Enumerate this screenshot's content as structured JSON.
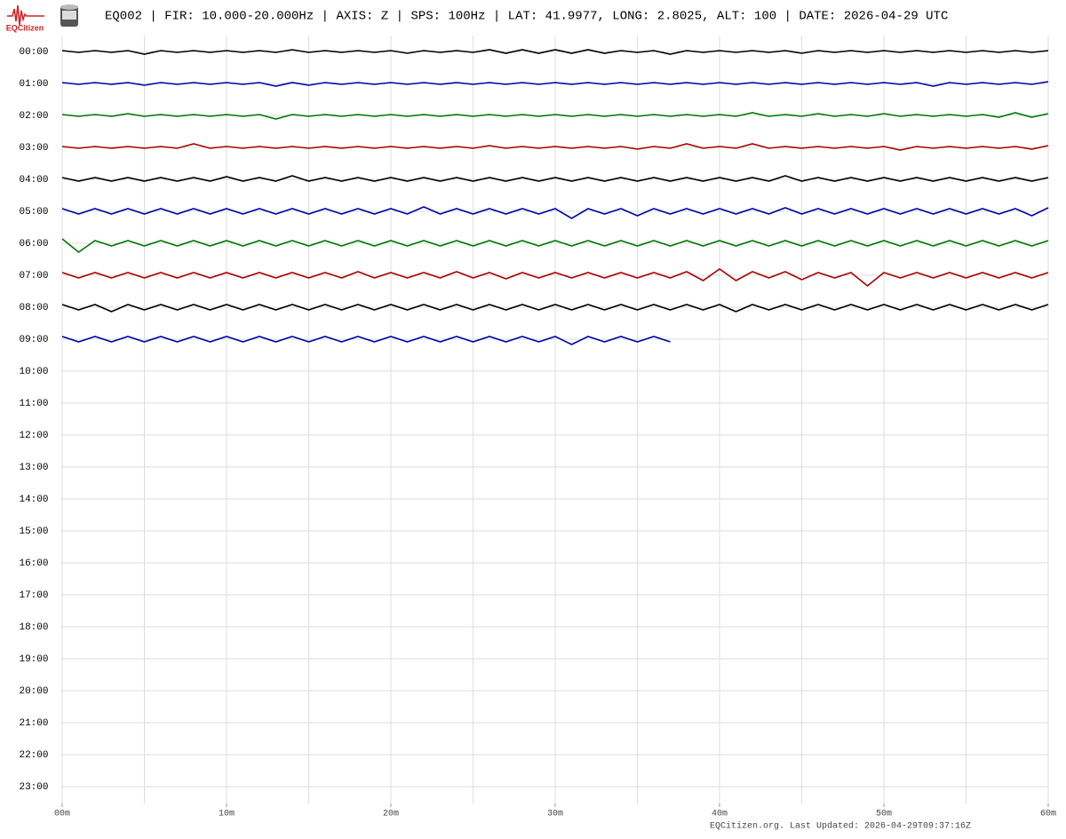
{
  "logo": "EQCitizen",
  "footer": "EQCitizen.org. Last Updated: 2026-04-29T09:37:16Z",
  "chart_data": {
    "type": "helicorder",
    "title": "EQ002 | FIR: 10.000-20.000Hz | AXIS: Z | SPS: 100Hz | LAT: 41.9977, LONG: 2.8025, ALT: 100 | DATE: 2026-04-29 UTC",
    "categories": [
      "00:00",
      "01:00",
      "02:00",
      "03:00",
      "04:00",
      "05:00",
      "06:00",
      "07:00",
      "08:00",
      "09:00",
      "10:00",
      "11:00",
      "12:00",
      "13:00",
      "14:00",
      "15:00",
      "16:00",
      "17:00",
      "18:00",
      "19:00",
      "20:00",
      "21:00",
      "22:00",
      "23:00"
    ],
    "xlim": [
      0,
      60
    ],
    "xticks": [
      {
        "value": 0,
        "label": "00m"
      },
      {
        "value": 10,
        "label": "10m"
      },
      {
        "value": 20,
        "label": "20m"
      },
      {
        "value": 30,
        "label": "30m"
      },
      {
        "value": 40,
        "label": "40m"
      },
      {
        "value": 50,
        "label": "50m"
      },
      {
        "value": 60,
        "label": "60m"
      }
    ],
    "xgrid": [
      0,
      5,
      10,
      15,
      20,
      25,
      30,
      35,
      40,
      45,
      50,
      55,
      60
    ],
    "ylim": [
      -18,
      18
    ],
    "grid": true,
    "x": [
      0,
      1,
      2,
      3,
      4,
      5,
      6,
      7,
      8,
      9,
      10,
      11,
      12,
      13,
      14,
      15,
      16,
      17,
      18,
      19,
      20,
      21,
      22,
      23,
      24,
      25,
      26,
      27,
      28,
      29,
      30,
      31,
      32,
      33,
      34,
      35,
      36,
      37,
      38,
      39,
      40,
      41,
      42,
      43,
      44,
      45,
      46,
      47,
      48,
      49,
      50,
      51,
      52,
      53,
      54,
      55,
      56,
      57,
      58,
      59,
      60
    ],
    "series": [
      {
        "name": "00:00",
        "color": "#000000",
        "values": [
          1,
          1,
          1,
          1,
          1,
          3,
          1,
          1,
          1,
          1,
          1,
          1,
          1,
          1,
          2,
          1,
          1,
          1,
          1,
          1,
          1,
          2,
          1,
          1,
          1,
          1,
          2,
          2,
          2,
          2,
          2,
          2,
          2,
          2,
          1,
          1,
          1,
          3,
          1,
          1,
          1,
          1,
          1,
          1,
          1,
          2,
          1,
          1,
          1,
          1,
          1,
          1,
          1,
          1,
          1,
          1,
          1,
          1,
          1,
          1,
          1
        ]
      },
      {
        "name": "01:00",
        "color": "#0000aa",
        "values": [
          1,
          1,
          1,
          1,
          1,
          2,
          1,
          1,
          1,
          1,
          1,
          1,
          1,
          3,
          1,
          2,
          1,
          1,
          1,
          1,
          1,
          1,
          1,
          1,
          1,
          1,
          1,
          1,
          1,
          1,
          1,
          1,
          1,
          1,
          1,
          1,
          1,
          1,
          1,
          1,
          1,
          1,
          1,
          1,
          1,
          1,
          1,
          1,
          1,
          1,
          1,
          1,
          1,
          3,
          1,
          1,
          1,
          1,
          1,
          1,
          2
        ]
      },
      {
        "name": "02:00",
        "color": "#007700",
        "values": [
          1,
          1,
          1,
          1,
          2,
          1,
          1,
          1,
          1,
          1,
          1,
          1,
          1,
          4,
          1,
          1,
          1,
          1,
          1,
          1,
          1,
          1,
          1,
          1,
          1,
          1,
          1,
          1,
          1,
          1,
          1,
          1,
          1,
          1,
          1,
          1,
          1,
          1,
          1,
          1,
          1,
          1,
          3,
          1,
          1,
          1,
          2,
          1,
          1,
          1,
          2,
          1,
          1,
          1,
          1,
          1,
          1,
          2,
          3,
          2,
          2
        ]
      },
      {
        "name": "03:00",
        "color": "#aa0000",
        "values": [
          1,
          1,
          1,
          1,
          1,
          1,
          1,
          1,
          4,
          1,
          1,
          1,
          1,
          1,
          1,
          1,
          1,
          1,
          1,
          1,
          1,
          1,
          1,
          1,
          1,
          1,
          2,
          1,
          1,
          1,
          1,
          1,
          1,
          1,
          1,
          2,
          1,
          1,
          4,
          1,
          1,
          1,
          4,
          1,
          1,
          1,
          1,
          1,
          1,
          1,
          1,
          3,
          1,
          1,
          1,
          1,
          1,
          1,
          1,
          2,
          2
        ]
      },
      {
        "name": "04:00",
        "color": "#000000",
        "values": [
          2,
          2,
          2,
          2,
          2,
          2,
          2,
          2,
          2,
          2,
          3,
          2,
          2,
          2,
          4,
          2,
          2,
          2,
          2,
          2,
          2,
          2,
          2,
          2,
          2,
          2,
          2,
          2,
          2,
          2,
          2,
          2,
          2,
          2,
          2,
          2,
          2,
          2,
          2,
          2,
          2,
          2,
          2,
          2,
          4,
          2,
          2,
          2,
          2,
          2,
          2,
          2,
          2,
          2,
          2,
          2,
          2,
          2,
          2,
          2,
          2
        ]
      },
      {
        "name": "05:00",
        "color": "#0000aa",
        "values": [
          3,
          3,
          3,
          3,
          3,
          3,
          3,
          3,
          3,
          3,
          3,
          3,
          3,
          3,
          3,
          3,
          3,
          3,
          3,
          3,
          3,
          3,
          5,
          3,
          3,
          3,
          3,
          3,
          3,
          3,
          3,
          8,
          3,
          3,
          3,
          5,
          3,
          3,
          3,
          3,
          3,
          3,
          3,
          3,
          4,
          3,
          3,
          3,
          3,
          3,
          3,
          3,
          3,
          3,
          3,
          3,
          3,
          3,
          3,
          5,
          4
        ]
      },
      {
        "name": "06:00",
        "color": "#007700",
        "values": [
          5,
          10,
          3,
          3,
          3,
          3,
          3,
          3,
          3,
          3,
          3,
          3,
          3,
          3,
          3,
          3,
          3,
          3,
          3,
          3,
          3,
          3,
          3,
          3,
          3,
          3,
          3,
          3,
          3,
          3,
          3,
          3,
          3,
          3,
          3,
          3,
          3,
          3,
          3,
          3,
          3,
          3,
          3,
          3,
          3,
          3,
          3,
          3,
          3,
          3,
          3,
          3,
          3,
          3,
          3,
          3,
          3,
          3,
          3,
          3,
          3
        ]
      },
      {
        "name": "07:00",
        "color": "#aa0000",
        "values": [
          3,
          3,
          3,
          3,
          3,
          3,
          3,
          3,
          3,
          3,
          3,
          3,
          3,
          3,
          3,
          3,
          3,
          3,
          4,
          3,
          3,
          3,
          3,
          3,
          4,
          3,
          3,
          4,
          3,
          3,
          3,
          3,
          3,
          3,
          3,
          3,
          3,
          3,
          4,
          6,
          7,
          6,
          4,
          3,
          4,
          5,
          3,
          3,
          3,
          12,
          3,
          3,
          3,
          3,
          3,
          3,
          3,
          3,
          3,
          3,
          3
        ]
      },
      {
        "name": "08:00",
        "color": "#000000",
        "values": [
          3,
          3,
          3,
          5,
          3,
          3,
          3,
          3,
          3,
          3,
          3,
          3,
          3,
          3,
          3,
          3,
          3,
          3,
          3,
          3,
          3,
          3,
          3,
          3,
          3,
          3,
          3,
          3,
          3,
          3,
          3,
          3,
          3,
          3,
          3,
          3,
          3,
          3,
          3,
          3,
          3,
          5,
          3,
          3,
          3,
          3,
          3,
          3,
          3,
          3,
          3,
          3,
          3,
          3,
          3,
          3,
          3,
          3,
          3,
          3,
          3
        ]
      },
      {
        "name": "09:00",
        "color": "#0000aa",
        "values": [
          3,
          3,
          3,
          3,
          3,
          3,
          3,
          3,
          3,
          3,
          3,
          3,
          3,
          3,
          3,
          3,
          3,
          3,
          3,
          3,
          3,
          3,
          3,
          3,
          3,
          3,
          3,
          3,
          3,
          3,
          3,
          6,
          3,
          3,
          3,
          3,
          3,
          3,
          null,
          null,
          null,
          null,
          null,
          null,
          null,
          null,
          null,
          null,
          null,
          null,
          null,
          null,
          null,
          null,
          null,
          null,
          null,
          null,
          null,
          null,
          null
        ]
      }
    ]
  }
}
